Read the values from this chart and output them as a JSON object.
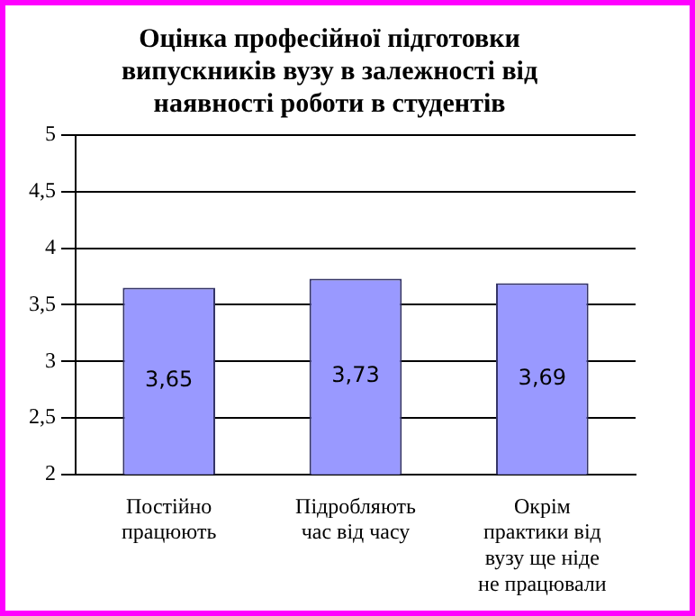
{
  "chart_data": {
    "type": "bar",
    "title": "Оцінка професійної підготовки випускників вузу в залежності від наявності роботи в студентів",
    "categories": [
      "Постійно працюють",
      "Підробляють час від часу",
      "Окрім практики від вузу ще ніде не працювали"
    ],
    "values": [
      3.65,
      3.73,
      3.69
    ],
    "value_labels": [
      "3,65",
      "3,73",
      "3,69"
    ],
    "color": "#9999ff",
    "ylim": [
      2,
      5
    ],
    "yticks": [
      2,
      {
        "value": 2.5,
        "label": "2,5"
      },
      3,
      {
        "value": 3.5,
        "label": "3,5"
      },
      4,
      {
        "value": 4.5,
        "label": "4,5"
      },
      5
    ],
    "grid": "y",
    "legend": false
  }
}
